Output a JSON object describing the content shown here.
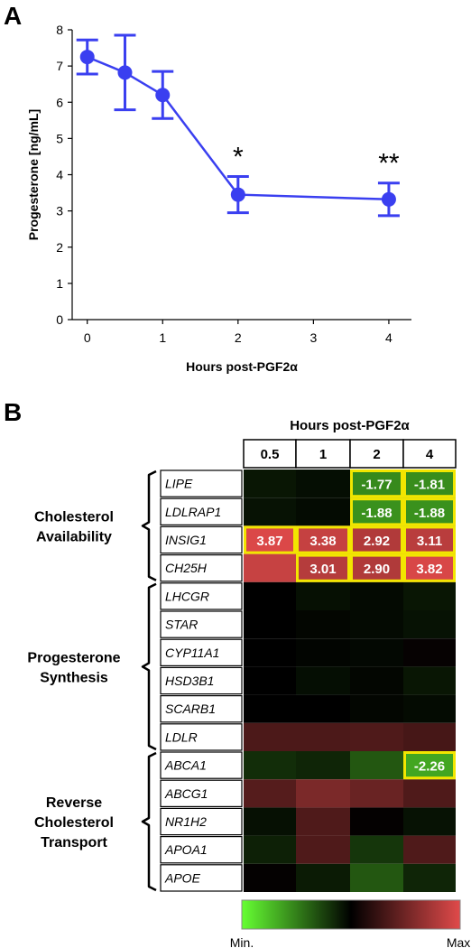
{
  "panel_a": {
    "letter": "A",
    "chart_data": {
      "type": "line",
      "xlabel": "Hours post-PGF2α",
      "ylabel": "Progesterone [ng/mL]",
      "xlim": [
        -0.2,
        4.3
      ],
      "ylim": [
        0,
        8
      ],
      "xticks": [
        0,
        1,
        2,
        3,
        4
      ],
      "yticks": [
        0,
        1,
        2,
        3,
        4,
        5,
        6,
        7,
        8
      ],
      "series": [
        {
          "x": [
            0,
            0.5,
            1,
            2,
            4
          ],
          "y": [
            7.25,
            6.82,
            6.2,
            3.45,
            3.32
          ],
          "err": [
            0.47,
            1.03,
            0.65,
            0.5,
            0.45
          ]
        }
      ],
      "annotations": [
        {
          "x": 2,
          "label": "*"
        },
        {
          "x": 4,
          "label": "**"
        }
      ],
      "color": "#3a3ff0",
      "grid": false,
      "legend": "none"
    }
  },
  "panel_b": {
    "letter": "B",
    "chart_data": {
      "type": "heatmap",
      "title": "Hours post-PGF2α",
      "columns": [
        "0.5",
        "1",
        "2",
        "4"
      ],
      "groups": [
        {
          "label_lines": [
            "Cholesterol",
            "Availability"
          ],
          "genes": [
            "LIPE",
            "LDLRAP1",
            "INSIG1",
            "CH25H"
          ]
        },
        {
          "label_lines": [
            "Progesterone",
            "Synthesis"
          ],
          "genes": [
            "LHCGR",
            "STAR",
            "CYP11A1",
            "HSD3B1",
            "SCARB1",
            "LDLR"
          ]
        },
        {
          "label_lines": [
            "Reverse",
            "Cholesterol",
            "Transport"
          ],
          "genes": [
            "ABCA1",
            "ABCG1",
            "NR1H2",
            "APOA1",
            "APOE"
          ]
        }
      ],
      "rows": [
        {
          "gene": "LIPE",
          "values": [
            -0.15,
            -0.08,
            -1.77,
            -1.81
          ],
          "labels": [
            "",
            "",
            "-1.77",
            "-1.81"
          ]
        },
        {
          "gene": "LDLRAP1",
          "values": [
            -0.12,
            -0.06,
            -1.88,
            -1.88
          ],
          "labels": [
            "",
            "",
            "-1.88",
            "-1.88"
          ]
        },
        {
          "gene": "INSIG1",
          "values": [
            3.87,
            3.38,
            2.92,
            3.11
          ],
          "labels": [
            "3.87",
            "3.38",
            "2.92",
            "3.11"
          ]
        },
        {
          "gene": "CH25H",
          "values": [
            3.4,
            3.01,
            2.9,
            3.82
          ],
          "labels": [
            "",
            "3.01",
            "2.90",
            "3.82"
          ]
        },
        {
          "gene": "LHCGR",
          "values": [
            0.0,
            -0.1,
            -0.05,
            -0.15
          ],
          "labels": [
            "",
            "",
            "",
            ""
          ]
        },
        {
          "gene": "STAR",
          "values": [
            0.0,
            -0.03,
            -0.05,
            -0.12
          ],
          "labels": [
            "",
            "",
            "",
            ""
          ]
        },
        {
          "gene": "CYP11A1",
          "values": [
            0.0,
            -0.02,
            -0.04,
            0.03
          ],
          "labels": [
            "",
            "",
            "",
            ""
          ]
        },
        {
          "gene": "HSD3B1",
          "values": [
            0.0,
            -0.08,
            -0.03,
            -0.15
          ],
          "labels": [
            "",
            "",
            "",
            ""
          ]
        },
        {
          "gene": "SCARB1",
          "values": [
            0.0,
            0.0,
            -0.03,
            -0.06
          ],
          "labels": [
            "",
            "",
            "",
            ""
          ]
        },
        {
          "gene": "LDLR",
          "values": [
            0.95,
            0.95,
            1.0,
            0.85
          ],
          "labels": [
            "",
            "",
            "",
            ""
          ]
        },
        {
          "gene": "ABCA1",
          "values": [
            -0.4,
            -0.3,
            -0.95,
            -2.26
          ],
          "labels": [
            "",
            "",
            "",
            "-2.26"
          ]
        },
        {
          "gene": "ABCG1",
          "values": [
            1.1,
            1.8,
            1.45,
            1.0
          ],
          "labels": [
            "",
            "",
            "",
            ""
          ]
        },
        {
          "gene": "NR1H2",
          "values": [
            -0.1,
            1.0,
            0.02,
            -0.12
          ],
          "labels": [
            "",
            "",
            "",
            ""
          ]
        },
        {
          "gene": "APOA1",
          "values": [
            -0.25,
            1.0,
            -0.5,
            1.0
          ],
          "labels": [
            "",
            "",
            "",
            ""
          ]
        },
        {
          "gene": "APOE",
          "values": [
            0.02,
            -0.2,
            -0.95,
            -0.3
          ],
          "labels": [
            "",
            "",
            "",
            ""
          ]
        }
      ],
      "scale_min_value": -4,
      "scale_max_value": 4,
      "color_min": "#66ff33",
      "color_mid": "#000000",
      "color_max": "#e04a4a",
      "highlight_color": "#f2e600",
      "colorbar_min_label": "Min.",
      "colorbar_max_label": "Max."
    }
  }
}
